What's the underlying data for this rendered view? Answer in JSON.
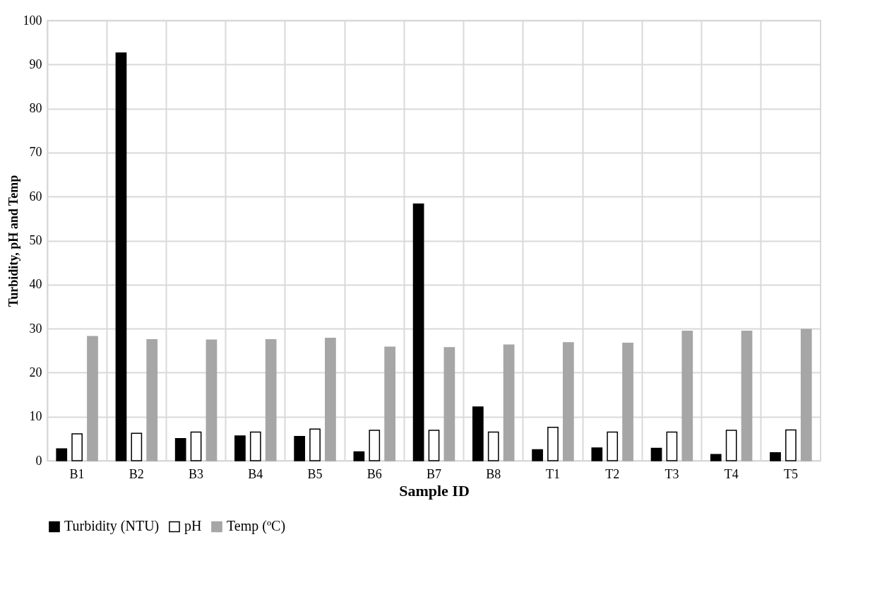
{
  "chart_data": {
    "type": "bar",
    "xlabel": "Sample ID",
    "ylabel": "Turbidity, pH and Temp",
    "categories": [
      "B1",
      "B2",
      "B3",
      "B4",
      "B5",
      "B6",
      "B7",
      "B8",
      "T1",
      "T2",
      "T3",
      "T4",
      "T5"
    ],
    "series": [
      {
        "name": "Turbidity (NTU)",
        "color": "#000000",
        "values": [
          2.7,
          92.6,
          5.0,
          5.6,
          5.5,
          2.0,
          58.3,
          12.2,
          2.5,
          2.9,
          2.8,
          1.4,
          1.8
        ]
      },
      {
        "name": "pH",
        "color": "#ffffff",
        "values": [
          6.1,
          6.2,
          6.5,
          6.5,
          7.2,
          6.9,
          6.9,
          6.5,
          7.6,
          6.5,
          6.5,
          6.9,
          7.0
        ]
      },
      {
        "name": "Temp (ºC)",
        "color": "#a6a6a6",
        "values": [
          28.2,
          27.5,
          27.4,
          27.5,
          27.8,
          25.8,
          25.7,
          26.3,
          26.8,
          26.7,
          29.4,
          29.4,
          29.8
        ]
      }
    ],
    "ylim": [
      0,
      100
    ],
    "yticks": [
      0,
      10,
      20,
      30,
      40,
      50,
      60,
      70,
      80,
      90,
      100
    ],
    "grid": true,
    "legend": "bottom"
  }
}
